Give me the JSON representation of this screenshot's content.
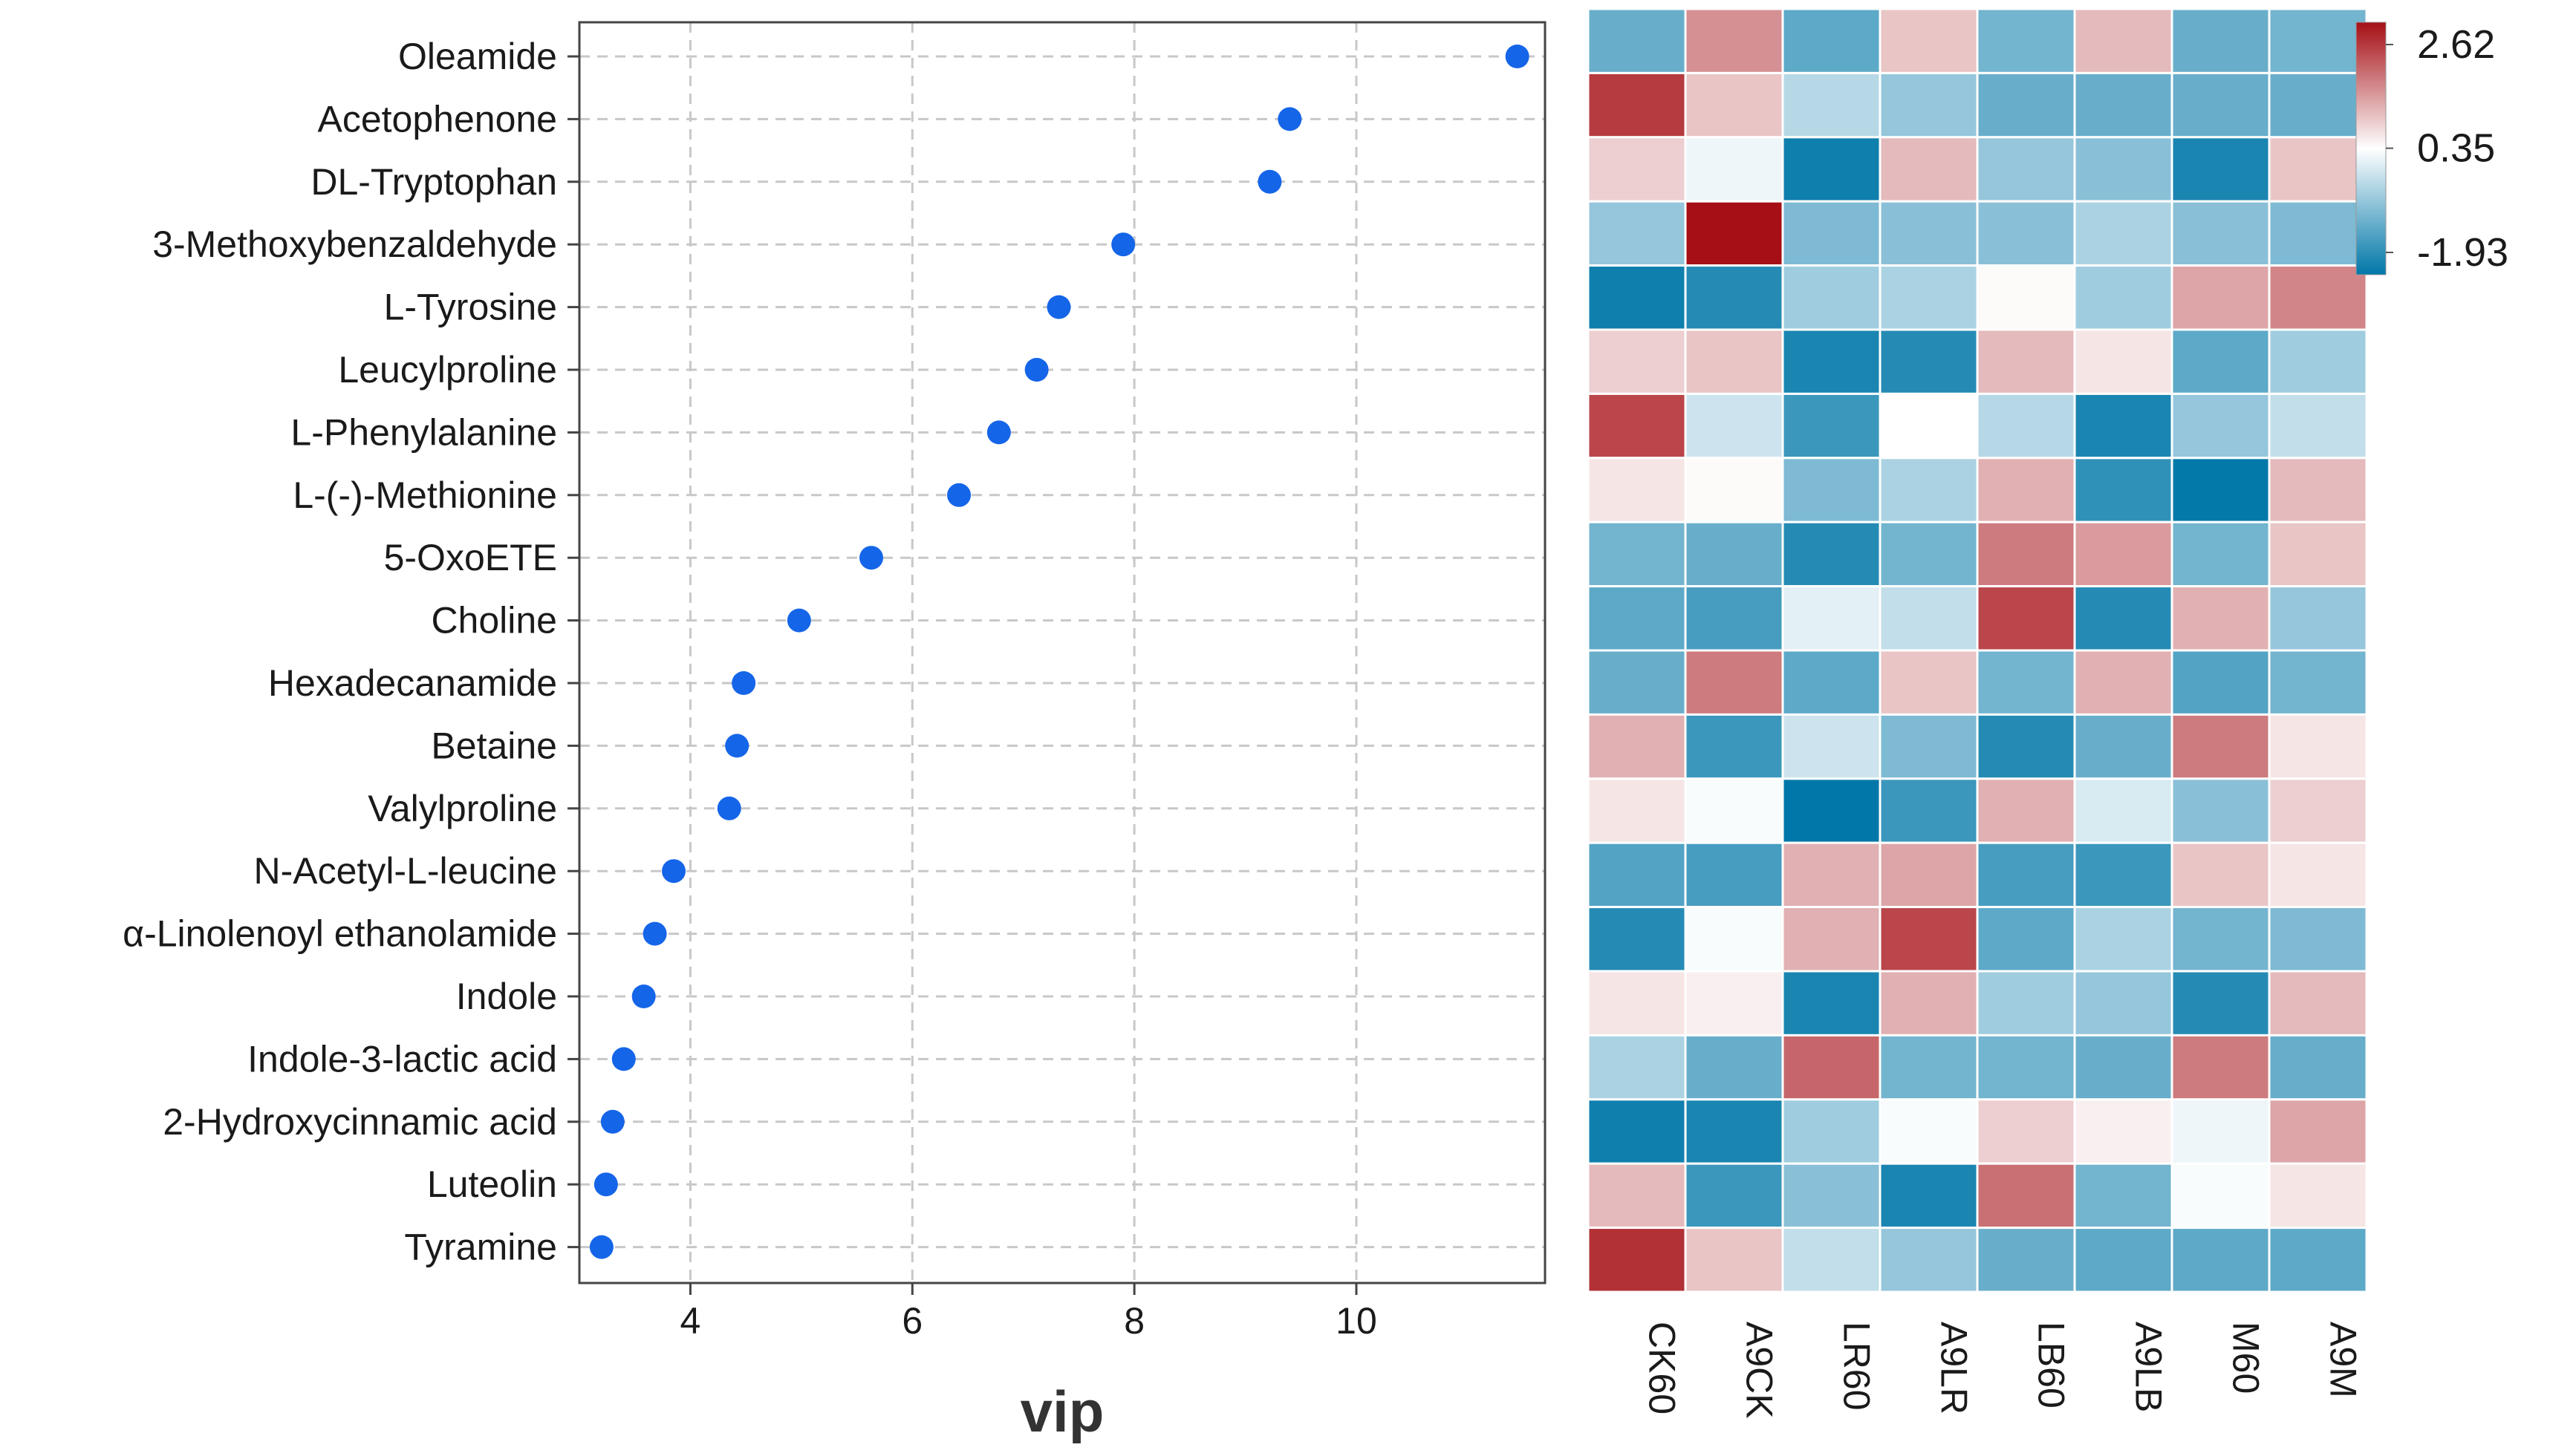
{
  "chart_data": [
    {
      "type": "scatter",
      "title": "",
      "xlabel": "vip",
      "ylabel": "",
      "xlim": [
        3.0,
        11.7
      ],
      "xticks": [
        4,
        6,
        8,
        10
      ],
      "grid": true,
      "point_color": "#1565e8",
      "metabolites": [
        "Oleamide",
        "Acetophenone",
        "DL-Tryptophan",
        "3-Methoxybenzaldehyde",
        "L-Tyrosine",
        "Leucylproline",
        "L-Phenylalanine",
        "L-(-)-Methionine",
        "5-OxoETE",
        "Choline",
        "Hexadecanamide",
        "Betaine",
        "Valylproline",
        "N-Acetyl-L-leucine",
        "α-Linolenoyl ethanolamide",
        "Indole",
        "Indole-3-lactic acid",
        "2-Hydroxycinnamic acid",
        "Luteolin",
        "Tyramine"
      ],
      "values": [
        11.45,
        9.4,
        9.22,
        7.9,
        7.32,
        7.12,
        6.78,
        6.42,
        5.63,
        4.98,
        4.48,
        4.42,
        4.35,
        3.85,
        3.68,
        3.58,
        3.4,
        3.3,
        3.24,
        3.2
      ]
    },
    {
      "type": "heatmap",
      "columns": [
        "CK60",
        "A9CK",
        "LR60",
        "A9LR",
        "LB60",
        "A9LB",
        "M60",
        "A9M"
      ],
      "legend": {
        "ticks": [
          {
            "label": "2.62",
            "value": 2.62
          },
          {
            "label": "0.35",
            "value": 0.35
          },
          {
            "label": "-1.93",
            "value": -1.93
          }
        ],
        "range": [
          -1.93,
          2.62
        ],
        "colors": [
          "#0077a8",
          "#ffffff",
          "#a50f15"
        ]
      },
      "matrix": [
        [
          -1.0,
          1.4,
          -1.1,
          0.9,
          -0.9,
          1.0,
          -1.0,
          -0.9
        ],
        [
          2.2,
          0.9,
          -0.3,
          -0.6,
          -1.0,
          -1.0,
          -1.0,
          -1.0
        ],
        [
          0.8,
          0.2,
          -1.8,
          1.0,
          -0.6,
          -0.7,
          -1.7,
          0.9
        ],
        [
          -0.6,
          2.62,
          -0.8,
          -0.7,
          -0.7,
          -0.4,
          -0.7,
          -0.8
        ],
        [
          -1.8,
          -1.6,
          -0.5,
          -0.4,
          0.4,
          -0.5,
          1.2,
          1.5
        ],
        [
          0.8,
          0.9,
          -1.7,
          -1.6,
          1.0,
          0.6,
          -1.1,
          -0.5
        ],
        [
          2.1,
          -0.1,
          -1.4,
          0.35,
          -0.3,
          -1.7,
          -0.6,
          -0.2
        ],
        [
          0.6,
          0.4,
          -0.8,
          -0.4,
          1.1,
          -1.5,
          -1.9,
          1.0
        ],
        [
          -0.9,
          -1.0,
          -1.6,
          -0.9,
          1.6,
          1.3,
          -0.9,
          0.9
        ],
        [
          -1.1,
          -1.3,
          0.1,
          -0.2,
          2.1,
          -1.6,
          1.1,
          -0.6
        ],
        [
          -1.0,
          1.6,
          -1.1,
          0.9,
          -0.9,
          1.1,
          -1.2,
          -0.9
        ],
        [
          1.1,
          -1.4,
          -0.1,
          -0.8,
          -1.6,
          -1.0,
          1.6,
          0.6
        ],
        [
          0.6,
          0.3,
          -1.93,
          -1.4,
          1.1,
          0.0,
          -0.7,
          0.8
        ],
        [
          -1.2,
          -1.3,
          1.1,
          1.2,
          -1.3,
          -1.4,
          0.9,
          0.6
        ],
        [
          -1.6,
          0.3,
          1.1,
          2.1,
          -1.1,
          -0.4,
          -0.9,
          -0.8
        ],
        [
          0.6,
          0.5,
          -1.7,
          1.1,
          -0.5,
          -0.6,
          -1.6,
          1.0
        ],
        [
          -0.4,
          -1.0,
          1.8,
          -0.9,
          -0.9,
          -1.0,
          1.6,
          -1.0
        ],
        [
          -1.8,
          -1.7,
          -0.5,
          0.3,
          0.8,
          0.5,
          0.2,
          1.2
        ],
        [
          1.0,
          -1.4,
          -0.7,
          -1.7,
          1.7,
          -0.9,
          0.3,
          0.6
        ],
        [
          2.3,
          0.9,
          -0.2,
          -0.6,
          -1.0,
          -1.1,
          -1.1,
          -1.1
        ]
      ]
    }
  ]
}
